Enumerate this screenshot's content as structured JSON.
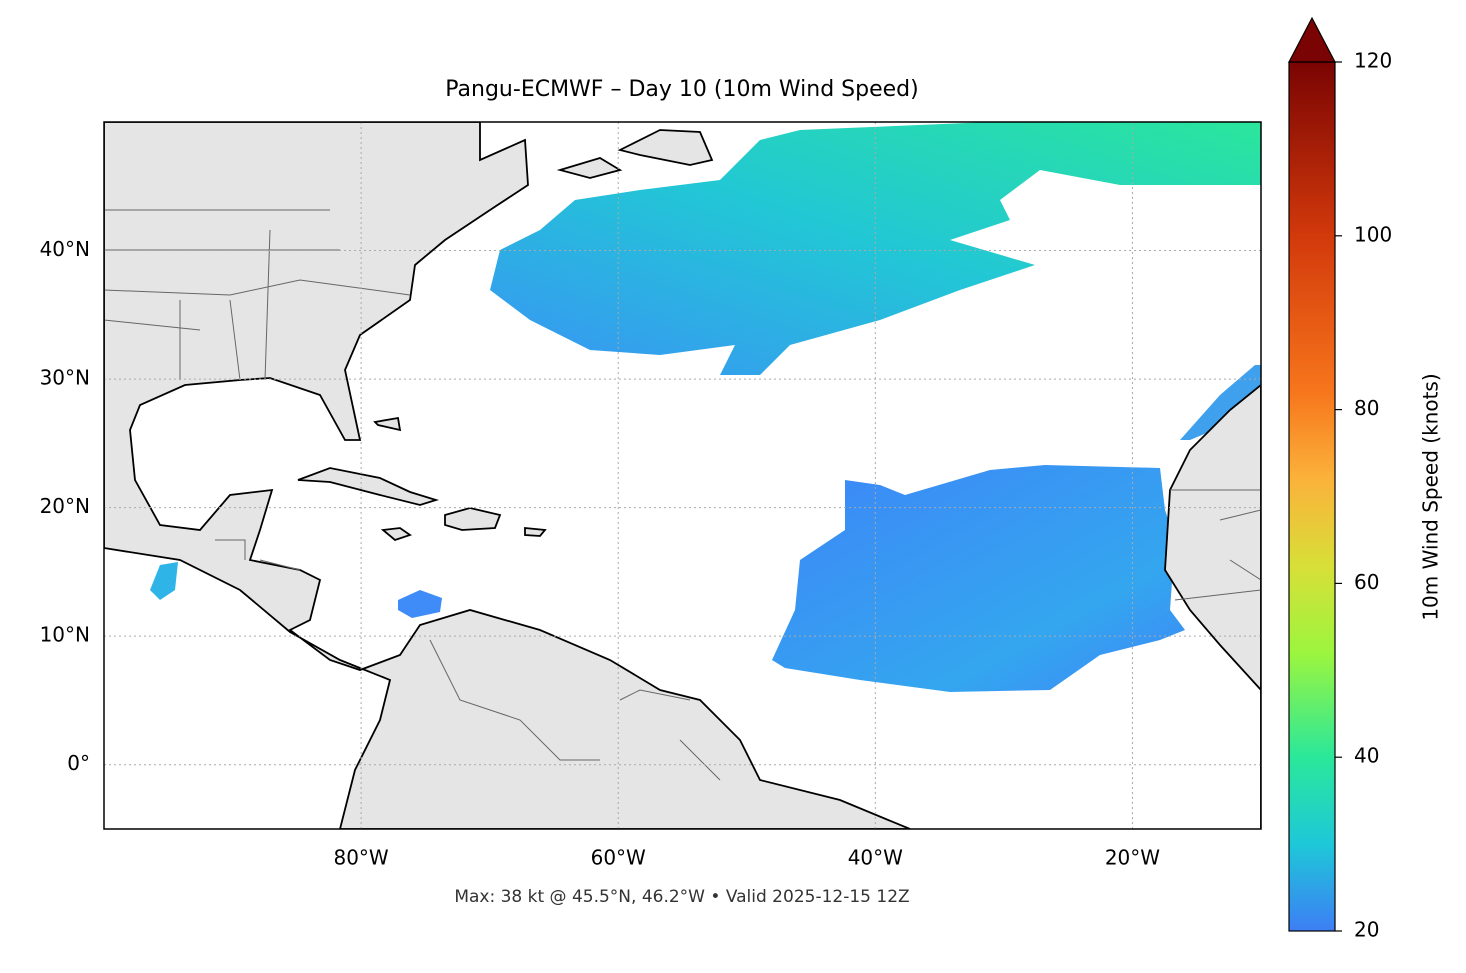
{
  "title": "Pangu-ECMWF – Day 10 (10m Wind Speed)",
  "map": {
    "lon_range": [
      -100,
      -10
    ],
    "lat_range": [
      -5,
      50
    ],
    "lon_ticks": [
      {
        "value": -80,
        "label": "80°W"
      },
      {
        "value": -60,
        "label": "60°W"
      },
      {
        "value": -40,
        "label": "40°W"
      },
      {
        "value": -20,
        "label": "20°W"
      }
    ],
    "lat_ticks": [
      {
        "value": 0,
        "label": "0°"
      },
      {
        "value": 10,
        "label": "10°N"
      },
      {
        "value": 20,
        "label": "20°N"
      },
      {
        "value": 30,
        "label": "30°N"
      },
      {
        "value": 40,
        "label": "40°N"
      }
    ]
  },
  "colorbar": {
    "label": "10m Wind Speed (knots)",
    "range": [
      20,
      120
    ],
    "ticks": [
      20,
      40,
      60,
      80,
      100,
      120
    ]
  },
  "footer": "Max: 38 kt @ 45.5°N, 46.2°W • Valid 2025-12-15 12Z"
}
